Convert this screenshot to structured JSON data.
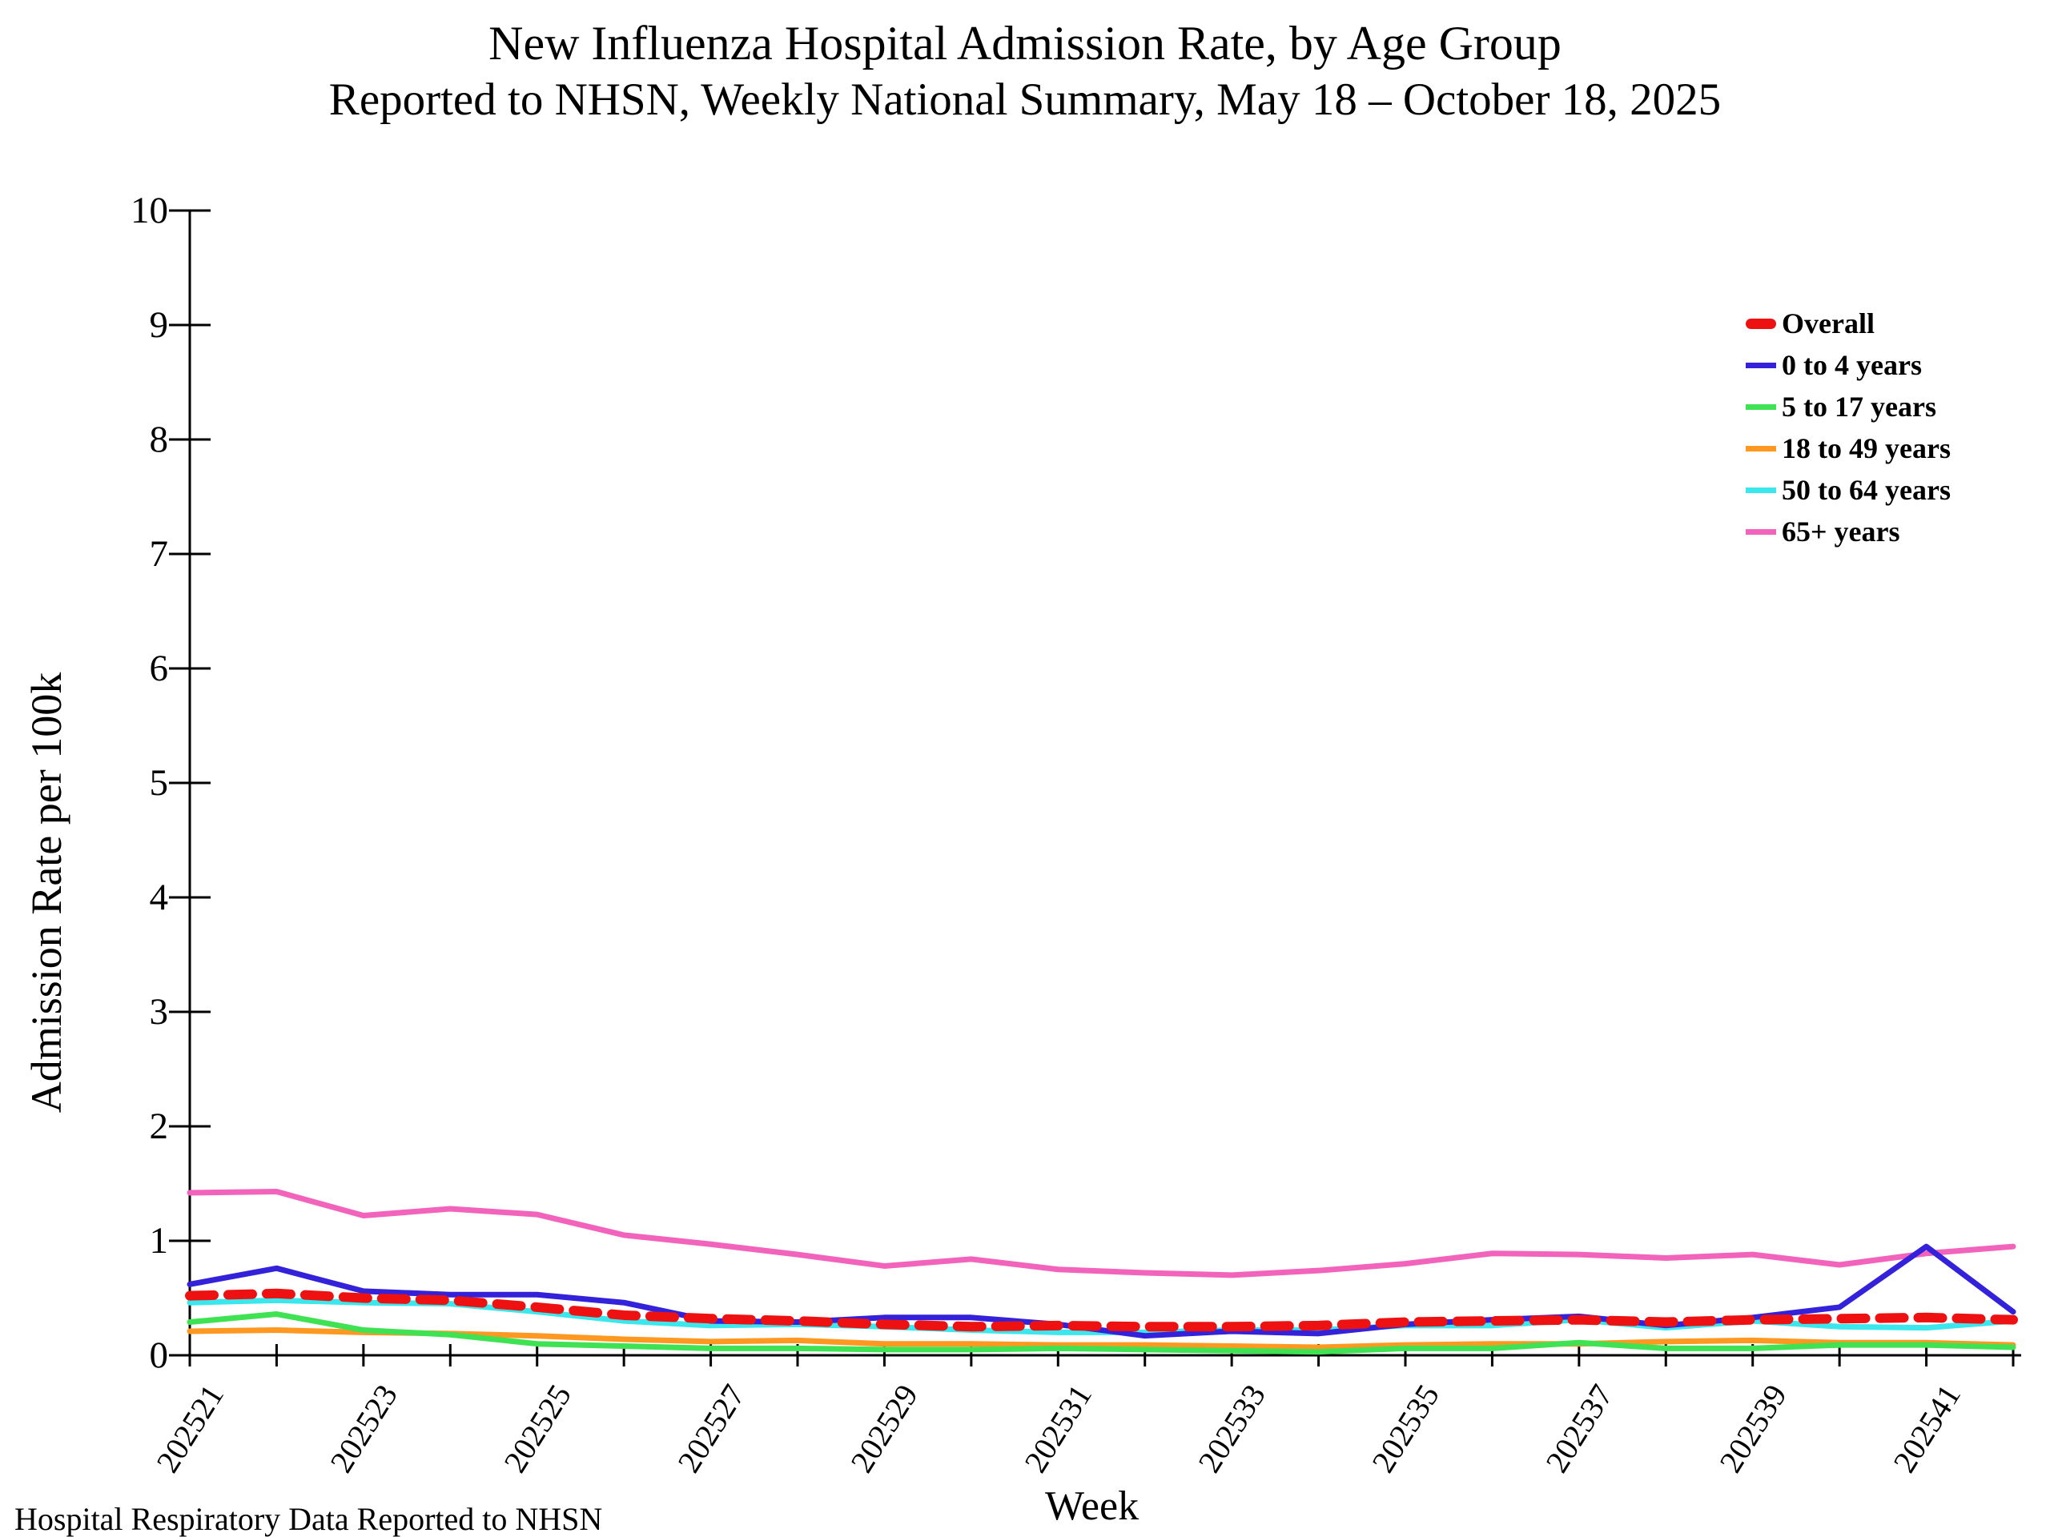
{
  "title": {
    "line1": "New Influenza Hospital Admission Rate, by Age Group",
    "line2": "Reported to NHSN, Weekly National Summary, May 18 – October 18, 2025"
  },
  "axes": {
    "x_title": "Week",
    "y_title": "Admission Rate per 100k"
  },
  "footer": "Hospital Respiratory Data Reported to NHSN",
  "chart_data": {
    "type": "line",
    "title": "New Influenza Hospital Admission Rate, by Age Group",
    "subtitle": "Reported to NHSN, Weekly National Summary, May 18 – October 18, 2025",
    "xlabel": "Week",
    "ylabel": "Admission Rate per 100k",
    "ylim": [
      0,
      10
    ],
    "y_ticks": [
      0,
      1,
      2,
      3,
      4,
      5,
      6,
      7,
      8,
      9,
      10
    ],
    "x": [
      "202521",
      "202522",
      "202523",
      "202524",
      "202525",
      "202526",
      "202527",
      "202528",
      "202529",
      "202530",
      "202531",
      "202532",
      "202533",
      "202534",
      "202535",
      "202536",
      "202537",
      "202538",
      "202539",
      "202540",
      "202541",
      "202542"
    ],
    "x_tick_label_interval": 2,
    "grid": false,
    "legend_position": "upper right",
    "series": [
      {
        "name": "Overall",
        "color": "#EE1111",
        "style": "dashed",
        "values": [
          0.52,
          0.54,
          0.5,
          0.48,
          0.42,
          0.35,
          0.32,
          0.3,
          0.27,
          0.25,
          0.26,
          0.25,
          0.25,
          0.26,
          0.29,
          0.3,
          0.31,
          0.29,
          0.31,
          0.32,
          0.33,
          0.31
        ]
      },
      {
        "name": "0 to 4 years",
        "color": "#3322D9",
        "style": "solid",
        "values": [
          0.62,
          0.76,
          0.56,
          0.53,
          0.53,
          0.46,
          0.3,
          0.29,
          0.33,
          0.33,
          0.27,
          0.17,
          0.21,
          0.19,
          0.27,
          0.31,
          0.34,
          0.26,
          0.33,
          0.42,
          0.95,
          0.38
        ]
      },
      {
        "name": "5 to 17 years",
        "color": "#3FE252",
        "style": "solid",
        "values": [
          0.29,
          0.36,
          0.22,
          0.18,
          0.1,
          0.08,
          0.06,
          0.06,
          0.05,
          0.05,
          0.06,
          0.05,
          0.04,
          0.03,
          0.06,
          0.06,
          0.11,
          0.06,
          0.06,
          0.09,
          0.09,
          0.07
        ]
      },
      {
        "name": "18 to 49 years",
        "color": "#FF9820",
        "style": "solid",
        "values": [
          0.21,
          0.22,
          0.2,
          0.19,
          0.17,
          0.14,
          0.12,
          0.13,
          0.1,
          0.1,
          0.09,
          0.09,
          0.08,
          0.07,
          0.09,
          0.1,
          0.1,
          0.12,
          0.13,
          0.11,
          0.11,
          0.09
        ]
      },
      {
        "name": "50 to 64 years",
        "color": "#39E7EC",
        "style": "solid",
        "values": [
          0.46,
          0.48,
          0.46,
          0.45,
          0.38,
          0.3,
          0.26,
          0.27,
          0.25,
          0.22,
          0.2,
          0.2,
          0.22,
          0.22,
          0.26,
          0.26,
          0.31,
          0.24,
          0.3,
          0.25,
          0.24,
          0.3
        ]
      },
      {
        "name": "65+ years",
        "color": "#F263BC",
        "style": "solid",
        "values": [
          1.42,
          1.43,
          1.22,
          1.28,
          1.23,
          1.05,
          0.97,
          0.88,
          0.78,
          0.84,
          0.75,
          0.72,
          0.7,
          0.74,
          0.8,
          0.89,
          0.88,
          0.85,
          0.88,
          0.79,
          0.89,
          0.95
        ]
      }
    ]
  }
}
